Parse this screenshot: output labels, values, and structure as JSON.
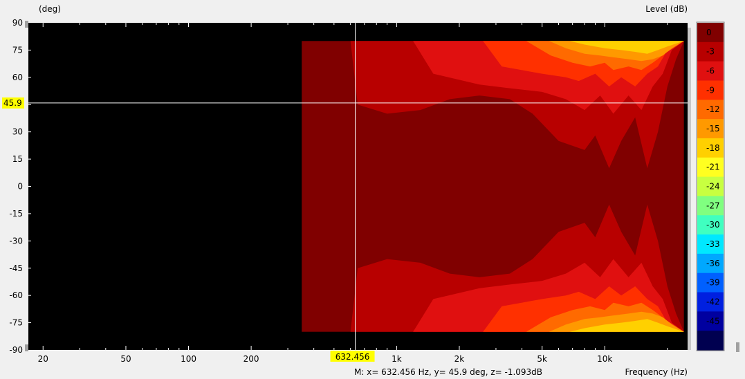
{
  "chart_data": {
    "type": "heatmap",
    "title": "",
    "ylabel": "(deg)",
    "xlabel": "Frequency  (Hz)",
    "colorbar_label": "Level  (dB)",
    "x_scale": "log",
    "xlim": [
      17,
      25000
    ],
    "ylim": [
      -90,
      90
    ],
    "x_ticks": [
      {
        "value": 20,
        "label": "20"
      },
      {
        "value": 50,
        "label": "50"
      },
      {
        "value": 100,
        "label": "100"
      },
      {
        "value": 200,
        "label": "200"
      },
      {
        "value": 1000,
        "label": "1k"
      },
      {
        "value": 2000,
        "label": "2k"
      },
      {
        "value": 5000,
        "label": "5k"
      },
      {
        "value": 10000,
        "label": "10k"
      }
    ],
    "y_ticks": [
      {
        "value": 90,
        "label": "90"
      },
      {
        "value": 75,
        "label": "75"
      },
      {
        "value": 60,
        "label": "60"
      },
      {
        "value": 30,
        "label": "30"
      },
      {
        "value": 15,
        "label": "15"
      },
      {
        "value": 0,
        "label": "0"
      },
      {
        "value": -15,
        "label": "-15"
      },
      {
        "value": -30,
        "label": "-30"
      },
      {
        "value": -45,
        "label": "-45"
      },
      {
        "value": -60,
        "label": "-60"
      },
      {
        "value": -75,
        "label": "-75"
      },
      {
        "value": -90,
        "label": "-90"
      }
    ],
    "data_range": {
      "freq_min": 350,
      "freq_max": 24000,
      "angle_min": -80,
      "angle_max": 80
    },
    "colorbar": {
      "levels": [
        {
          "label": "0",
          "color": "#800000"
        },
        {
          "label": "-3",
          "color": "#b80000"
        },
        {
          "label": "-6",
          "color": "#e01010"
        },
        {
          "label": "-9",
          "color": "#ff3000"
        },
        {
          "label": "-12",
          "color": "#ff6a00"
        },
        {
          "label": "-15",
          "color": "#ff9900"
        },
        {
          "label": "-18",
          "color": "#ffd000"
        },
        {
          "label": "-21",
          "color": "#ffff20"
        },
        {
          "label": "-24",
          "color": "#c8ff40"
        },
        {
          "label": "-27",
          "color": "#80ff80"
        },
        {
          "label": "-30",
          "color": "#40ffc0"
        },
        {
          "label": "-33",
          "color": "#00e8ff"
        },
        {
          "label": "-36",
          "color": "#00a8ff"
        },
        {
          "label": "-39",
          "color": "#0060ff"
        },
        {
          "label": "-42",
          "color": "#0020e0"
        },
        {
          "label": "-45",
          "color": "#0000a0"
        },
        {
          "label": "",
          "color": "#000050"
        }
      ]
    },
    "cursor": {
      "x": 632.456,
      "y": 45.9,
      "x_label": "632.456",
      "y_label": "45.9"
    },
    "readout": "M:  x= 632.456 Hz,  y= 45.9 deg, z= -1.093dB",
    "contours": [
      {
        "level": "-3",
        "f": [
          [
            600,
            80
          ],
          [
            650,
            45
          ],
          [
            900,
            40
          ],
          [
            1300,
            42
          ],
          [
            1800,
            48
          ],
          [
            2500,
            50
          ],
          [
            3500,
            48
          ],
          [
            4500,
            40
          ],
          [
            6000,
            25
          ],
          [
            8000,
            20
          ],
          [
            9000,
            28
          ],
          [
            10500,
            10
          ],
          [
            12000,
            25
          ],
          [
            14000,
            38
          ],
          [
            16000,
            10
          ],
          [
            18000,
            30
          ],
          [
            20000,
            55
          ],
          [
            22000,
            70
          ],
          [
            24000,
            80
          ]
        ]
      },
      {
        "level": "-6",
        "f": [
          [
            1200,
            80
          ],
          [
            1500,
            62
          ],
          [
            2500,
            56
          ],
          [
            3500,
            54
          ],
          [
            5000,
            52
          ],
          [
            6500,
            48
          ],
          [
            8000,
            42
          ],
          [
            9500,
            50
          ],
          [
            11000,
            40
          ],
          [
            13000,
            50
          ],
          [
            15000,
            42
          ],
          [
            17000,
            55
          ],
          [
            19000,
            62
          ],
          [
            21000,
            75
          ],
          [
            24000,
            80
          ]
        ]
      },
      {
        "level": "-9",
        "f": [
          [
            2600,
            80
          ],
          [
            3200,
            66
          ],
          [
            5000,
            62
          ],
          [
            6500,
            60
          ],
          [
            7500,
            58
          ],
          [
            9000,
            62
          ],
          [
            10500,
            55
          ],
          [
            12000,
            60
          ],
          [
            14000,
            55
          ],
          [
            16000,
            62
          ],
          [
            18000,
            66
          ],
          [
            20000,
            75
          ],
          [
            24000,
            80
          ]
        ]
      },
      {
        "level": "-12",
        "f": [
          [
            4200,
            80
          ],
          [
            5500,
            72
          ],
          [
            7000,
            68
          ],
          [
            8500,
            66
          ],
          [
            10000,
            68
          ],
          [
            11000,
            64
          ],
          [
            13000,
            66
          ],
          [
            15000,
            64
          ],
          [
            17000,
            68
          ],
          [
            20000,
            74
          ],
          [
            24000,
            80
          ]
        ]
      },
      {
        "level": "-15",
        "f": [
          [
            5400,
            80
          ],
          [
            6500,
            76
          ],
          [
            8000,
            73
          ],
          [
            9500,
            72
          ],
          [
            11000,
            71
          ],
          [
            13000,
            70
          ],
          [
            15000,
            69
          ],
          [
            17000,
            70
          ],
          [
            19000,
            72
          ],
          [
            21000,
            76
          ],
          [
            24000,
            80
          ]
        ]
      },
      {
        "level": "-18",
        "f": [
          [
            6800,
            80
          ],
          [
            8000,
            78
          ],
          [
            10000,
            76
          ],
          [
            12000,
            75
          ],
          [
            14000,
            74
          ],
          [
            16000,
            73
          ],
          [
            18000,
            75
          ],
          [
            20000,
            77
          ],
          [
            24000,
            80
          ]
        ]
      }
    ]
  }
}
